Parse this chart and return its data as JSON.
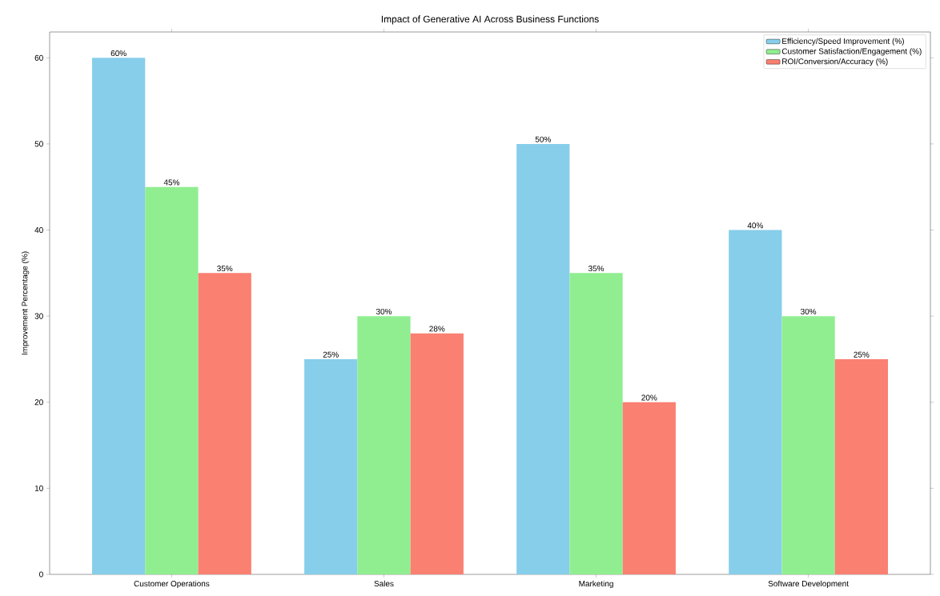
{
  "chart_data": {
    "type": "bar",
    "title": "Impact of Generative AI Across Business Functions",
    "ylabel": "Improvement Percentage (%)",
    "categories": [
      "Customer Operations",
      "Sales",
      "Marketing",
      "Software Development"
    ],
    "series": [
      {
        "name": "Efficiency/Speed Improvement (%)",
        "color": "#87ceeb",
        "values": [
          60,
          25,
          50,
          40
        ],
        "value_labels": [
          "60%",
          "25%",
          "50%",
          "40%"
        ]
      },
      {
        "name": "Customer Satisfaction/Engagement (%)",
        "color": "#90ee90",
        "values": [
          45,
          30,
          35,
          30
        ],
        "value_labels": [
          "45%",
          "30%",
          "35%",
          "30%"
        ]
      },
      {
        "name": "ROI/Conversion/Accuracy (%)",
        "color": "#fa8072",
        "values": [
          35,
          28,
          20,
          25
        ],
        "value_labels": [
          "35%",
          "28%",
          "20%",
          "25%"
        ]
      }
    ],
    "ylim": [
      0,
      63
    ],
    "yticks": [
      0,
      10,
      20,
      30,
      40,
      50,
      60
    ],
    "grid": false,
    "legend": "top right"
  }
}
